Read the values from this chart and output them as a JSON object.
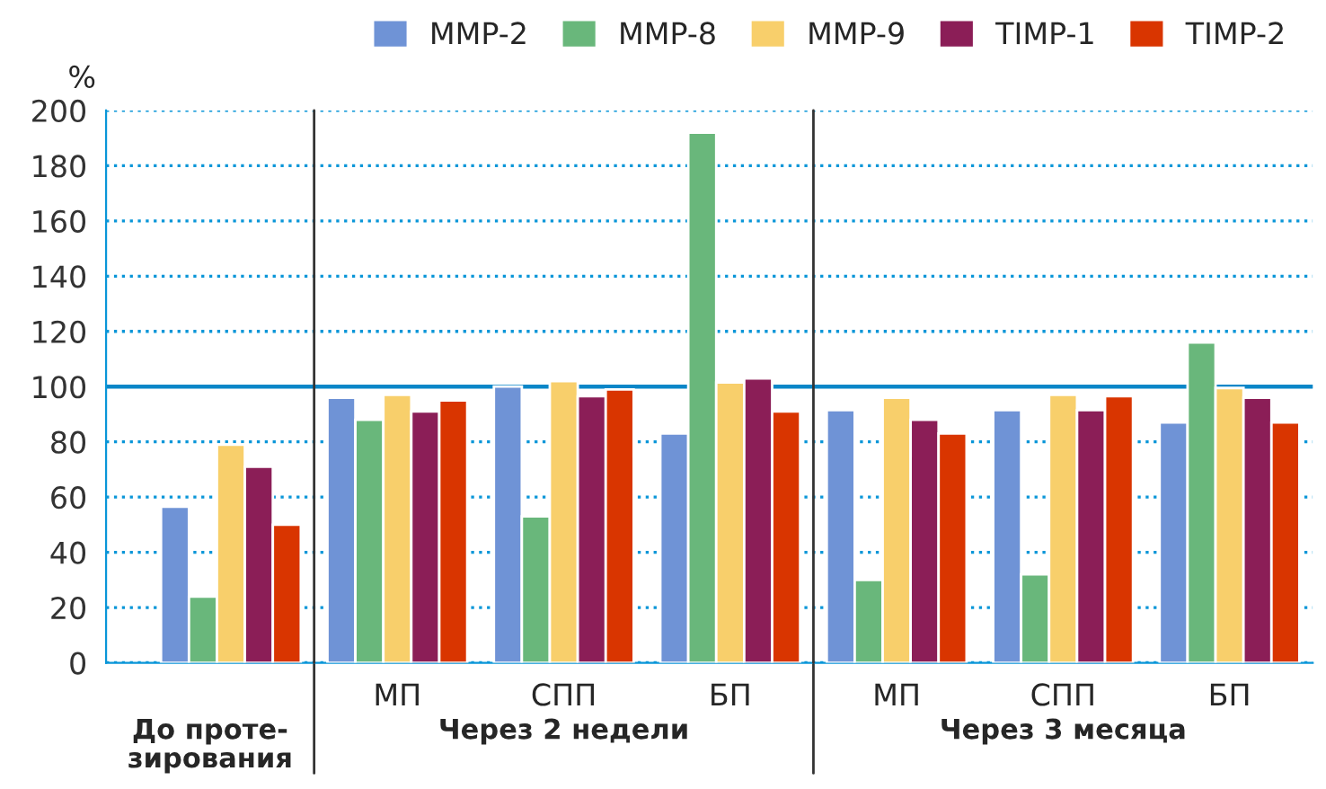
{
  "chart_data": {
    "type": "bar",
    "ylabel": "%",
    "categories": [
      null,
      "МП",
      "СПП",
      "БП",
      "МП",
      "СПП",
      "БП"
    ],
    "series": [
      {
        "name": "MMP-2",
        "color": "#6f93d6",
        "values": [
          56.5,
          96,
          100,
          83,
          91.5,
          91.5,
          87
        ]
      },
      {
        "name": "MMP-8",
        "color": "#69b77b",
        "values": [
          24,
          88,
          53,
          192,
          30,
          32,
          116
        ]
      },
      {
        "name": "MMP-9",
        "color": "#f8cf6b",
        "values": [
          79,
          97,
          102,
          101.5,
          96,
          97,
          99.5
        ]
      },
      {
        "name": "TIMP-1",
        "color": "#8b1e57",
        "values": [
          71,
          91,
          96.5,
          103,
          88,
          91.5,
          96
        ]
      },
      {
        "name": "TIMP-2",
        "color": "#d93500",
        "values": [
          50,
          95,
          99,
          91,
          83,
          96.5,
          87
        ]
      }
    ],
    "ylim": [
      0,
      200
    ],
    "yticks": [
      0,
      20,
      40,
      60,
      80,
      100,
      120,
      140,
      160,
      180,
      200
    ],
    "grid": "y",
    "legend": "top right",
    "ref_lines": [
      {
        "axis": "y",
        "value": 100,
        "color": "#0a86c8"
      }
    ],
    "annotations": [
      "До проте-\nзирования",
      "Через 2 недели",
      "Через 3 месяца"
    ]
  }
}
